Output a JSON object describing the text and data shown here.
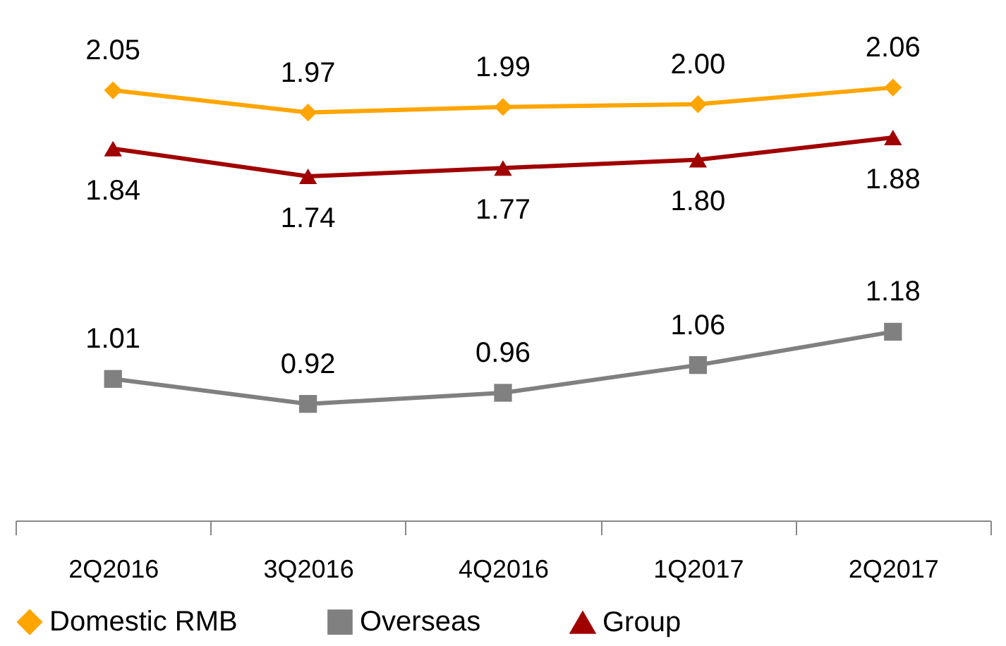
{
  "chart_data": {
    "type": "line",
    "categories": [
      "2Q2016",
      "3Q2016",
      "4Q2016",
      "1Q2017",
      "2Q2017"
    ],
    "series": [
      {
        "name": "Domestic RMB",
        "color": "#ffa500",
        "marker": "diamond",
        "values": [
          2.05,
          1.97,
          1.99,
          2.0,
          2.06
        ],
        "value_labels": [
          "2.05",
          "1.97",
          "1.99",
          "2.00",
          "2.06"
        ]
      },
      {
        "name": "Overseas",
        "color": "#808080",
        "marker": "square",
        "values": [
          1.01,
          0.92,
          0.96,
          1.06,
          1.18
        ],
        "value_labels": [
          "1.01",
          "0.92",
          "0.96",
          "1.06",
          "1.18"
        ]
      },
      {
        "name": "Group",
        "color": "#a00000",
        "marker": "triangle",
        "values": [
          1.84,
          1.74,
          1.77,
          1.8,
          1.88
        ],
        "value_labels": [
          "1.84",
          "1.74",
          "1.77",
          "1.80",
          "1.88"
        ]
      }
    ],
    "legend": "bottom",
    "line_style": "solid"
  }
}
